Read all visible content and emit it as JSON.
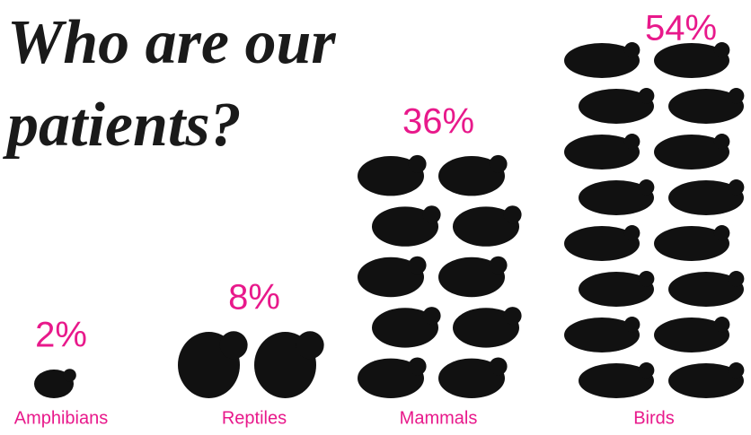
{
  "chart_data": {
    "type": "pictograph",
    "title": "Who are our patients?",
    "categories": [
      "Amphibians",
      "Reptiles",
      "Mammals",
      "Birds"
    ],
    "values": [
      2,
      8,
      36,
      54
    ],
    "value_labels": [
      "2%",
      "8%",
      "36%",
      "54%"
    ],
    "color": "#111111",
    "label_color": "#e8198b"
  }
}
